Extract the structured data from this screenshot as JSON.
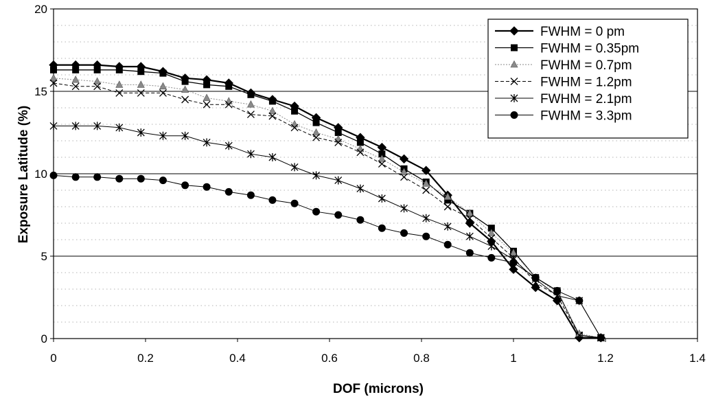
{
  "chart_data": {
    "type": "line",
    "title": "",
    "xlabel": "DOF (microns)",
    "ylabel": "Exposure Latitude (%)",
    "xlim": [
      0,
      1.4
    ],
    "ylim": [
      0,
      20
    ],
    "xticks": [
      "0",
      "0.2",
      "0.4",
      "0.6",
      "0.8",
      "1",
      "1.2",
      "1.4"
    ],
    "yticks": [
      "0",
      "5",
      "10",
      "15",
      "20"
    ],
    "grid": "horizontal major solid, minor dotted",
    "legend_placement": "top-right",
    "series": [
      {
        "name": "FWHM = 0 pm",
        "marker": "diamond",
        "color": "#000000",
        "x": [
          0,
          0.048,
          0.095,
          0.143,
          0.19,
          0.238,
          0.286,
          0.333,
          0.381,
          0.429,
          0.476,
          0.524,
          0.571,
          0.619,
          0.667,
          0.714,
          0.762,
          0.81,
          0.857,
          0.905,
          0.952,
          1.0,
          1.048,
          1.095,
          1.143,
          1.19
        ],
        "y": [
          16.6,
          16.6,
          16.6,
          16.5,
          16.5,
          16.2,
          15.8,
          15.7,
          15.5,
          14.9,
          14.5,
          14.1,
          13.4,
          12.8,
          12.2,
          11.6,
          10.9,
          10.2,
          8.7,
          7.0,
          5.9,
          4.2,
          3.1,
          2.3,
          0.05,
          0.05
        ]
      },
      {
        "name": "FWHM = 0.35pm",
        "marker": "square",
        "color": "#000000",
        "x": [
          0,
          0.048,
          0.095,
          0.143,
          0.19,
          0.238,
          0.286,
          0.333,
          0.381,
          0.429,
          0.476,
          0.524,
          0.571,
          0.619,
          0.667,
          0.714,
          0.762,
          0.81,
          0.857,
          0.905,
          0.952,
          1.0,
          1.048,
          1.095,
          1.143,
          1.19
        ],
        "y": [
          16.3,
          16.3,
          16.3,
          16.3,
          16.2,
          16.1,
          15.6,
          15.4,
          15.3,
          14.8,
          14.4,
          13.8,
          13.1,
          12.5,
          11.9,
          11.2,
          10.3,
          9.5,
          8.4,
          7.6,
          6.7,
          5.3,
          3.7,
          2.9,
          0.2,
          0.05
        ]
      },
      {
        "name": "FWHM = 0.7pm",
        "marker": "triangle",
        "color": "#8a8a8a",
        "x": [
          0,
          0.048,
          0.095,
          0.143,
          0.19,
          0.238,
          0.286,
          0.333,
          0.381,
          0.429,
          0.476,
          0.524,
          0.571,
          0.619,
          0.667,
          0.714,
          0.762,
          0.81,
          0.857,
          0.905,
          0.952,
          1.0,
          1.048,
          1.095,
          1.143,
          1.19
        ],
        "y": [
          15.8,
          15.7,
          15.6,
          15.4,
          15.4,
          15.3,
          15.1,
          14.6,
          14.4,
          14.2,
          13.8,
          13.0,
          12.5,
          12.1,
          11.5,
          10.9,
          10.1,
          9.4,
          8.6,
          7.6,
          6.4,
          5.2,
          3.7,
          2.8,
          0.3,
          0.05
        ]
      },
      {
        "name": "FWHM = 1.2pm",
        "marker": "x",
        "color": "#000000",
        "x": [
          0,
          0.048,
          0.095,
          0.143,
          0.19,
          0.238,
          0.286,
          0.333,
          0.381,
          0.429,
          0.476,
          0.524,
          0.571,
          0.619,
          0.667,
          0.714,
          0.762,
          0.81,
          0.857,
          0.905,
          0.952,
          1.0,
          1.048,
          1.095,
          1.143,
          1.19
        ],
        "y": [
          15.5,
          15.3,
          15.3,
          14.9,
          14.9,
          14.9,
          14.5,
          14.2,
          14.2,
          13.6,
          13.5,
          12.8,
          12.2,
          11.9,
          11.3,
          10.6,
          9.8,
          9.0,
          8.0,
          7.3,
          6.1,
          4.9,
          3.4,
          2.6,
          0.2,
          0.05
        ]
      },
      {
        "name": "FWHM = 2.1pm",
        "marker": "star",
        "color": "#000000",
        "x": [
          0,
          0.048,
          0.095,
          0.143,
          0.19,
          0.238,
          0.286,
          0.333,
          0.381,
          0.429,
          0.476,
          0.524,
          0.571,
          0.619,
          0.667,
          0.714,
          0.762,
          0.81,
          0.857,
          0.905,
          0.952,
          1.0,
          1.048,
          1.095,
          1.143,
          1.19
        ],
        "y": [
          12.9,
          12.9,
          12.9,
          12.8,
          12.5,
          12.3,
          12.3,
          11.9,
          11.7,
          11.2,
          11.0,
          10.4,
          9.9,
          9.6,
          9.1,
          8.5,
          7.9,
          7.3,
          6.8,
          6.2,
          5.6,
          4.8,
          3.6,
          2.6,
          2.3,
          0.05
        ]
      },
      {
        "name": "FWHM = 3.3pm",
        "marker": "circle",
        "color": "#000000",
        "x": [
          0,
          0.048,
          0.095,
          0.143,
          0.19,
          0.238,
          0.286,
          0.333,
          0.381,
          0.429,
          0.476,
          0.524,
          0.571,
          0.619,
          0.667,
          0.714,
          0.762,
          0.81,
          0.857,
          0.905,
          0.952,
          1.0,
          1.048,
          1.095,
          1.143,
          1.19
        ],
        "y": [
          9.9,
          9.8,
          9.8,
          9.7,
          9.7,
          9.6,
          9.3,
          9.2,
          8.9,
          8.7,
          8.4,
          8.2,
          7.7,
          7.5,
          7.2,
          6.7,
          6.4,
          6.2,
          5.7,
          5.2,
          4.9,
          4.6,
          3.7,
          2.9,
          2.3,
          0.05
        ]
      }
    ]
  }
}
